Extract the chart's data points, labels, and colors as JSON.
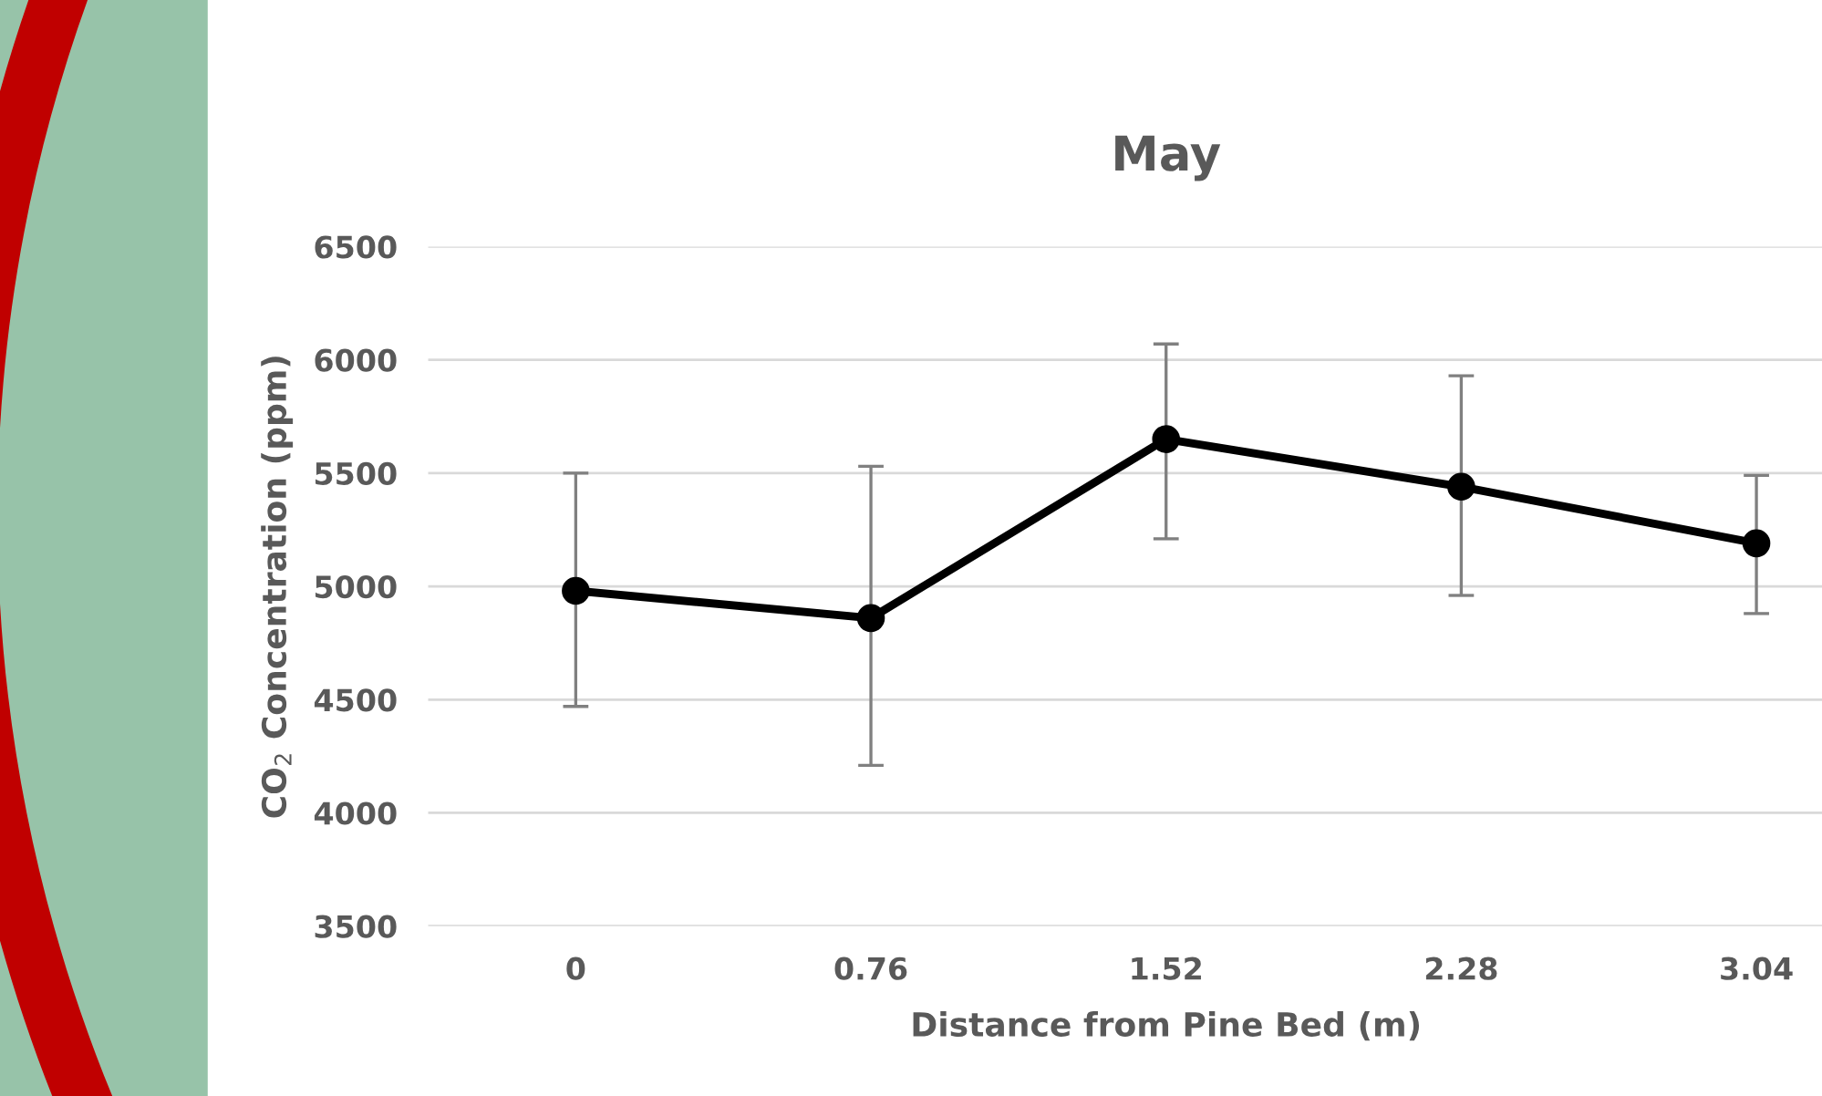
{
  "chart_data": {
    "type": "line",
    "title": "May",
    "xlabel": "Distance from Pine Bed (m)",
    "ylabel": "CO$_{2}$ Concentration (ppm)",
    "categories": [
      "0",
      "0.76",
      "1.52",
      "2.28",
      "3.04"
    ],
    "series": [
      {
        "color": "#000000",
        "values": [
          4980,
          4860,
          5650,
          5440,
          5190
        ],
        "errors": [
          [
            4470,
            5500
          ],
          [
            4210,
            5530
          ],
          [
            5210,
            6070
          ],
          [
            4960,
            5930
          ],
          [
            4880,
            5490
          ]
        ]
      }
    ],
    "ylim": [
      3500,
      6500
    ],
    "yticks": [
      3500,
      4000,
      4500,
      5000,
      5500,
      6000,
      6500
    ],
    "grid": "y",
    "marker": "circle",
    "line_style": "solid",
    "legend": false
  }
}
